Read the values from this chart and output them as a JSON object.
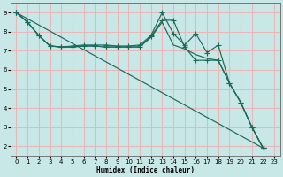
{
  "xlabel": "Humidex (Indice chaleur)",
  "bg_color": "#c8e8e8",
  "grid_color": "#e8b8b8",
  "line_color": "#1a6b5a",
  "xlim": [
    -0.5,
    23.5
  ],
  "ylim": [
    1.5,
    9.5
  ],
  "xticks": [
    0,
    1,
    2,
    3,
    4,
    5,
    6,
    7,
    8,
    9,
    10,
    11,
    12,
    13,
    14,
    15,
    16,
    17,
    18,
    19,
    20,
    21,
    22,
    23
  ],
  "yticks": [
    2,
    3,
    4,
    5,
    6,
    7,
    8,
    9
  ],
  "line1_x": [
    0,
    1,
    2,
    3,
    4,
    5,
    6,
    7,
    8,
    9,
    10,
    11,
    12,
    13,
    14,
    15,
    16,
    17,
    18,
    19,
    20,
    21,
    22
  ],
  "line1_y": [
    9.0,
    8.5,
    7.8,
    7.25,
    7.2,
    7.25,
    7.3,
    7.3,
    7.3,
    7.25,
    7.25,
    7.3,
    7.8,
    9.0,
    7.9,
    7.3,
    7.9,
    6.9,
    7.3,
    5.3,
    4.3,
    3.0,
    1.9
  ],
  "line2_x": [
    0,
    1,
    2,
    3,
    4,
    5,
    6,
    7,
    8,
    9,
    10,
    11,
    12,
    13,
    14,
    15,
    16,
    17,
    18,
    19,
    20,
    21,
    22
  ],
  "line2_y": [
    9.0,
    8.5,
    7.8,
    7.25,
    7.2,
    7.2,
    7.25,
    7.25,
    7.2,
    7.2,
    7.2,
    7.2,
    7.75,
    8.6,
    8.6,
    7.2,
    6.5,
    6.5,
    6.5,
    5.3,
    4.3,
    3.0,
    1.9
  ],
  "line3_x": [
    0,
    1,
    2,
    3,
    4,
    5,
    6,
    7,
    8,
    9,
    10,
    11,
    12,
    13,
    14,
    15,
    16,
    17,
    18,
    19,
    20,
    21,
    22
  ],
  "line3_y": [
    9.0,
    8.5,
    7.8,
    7.25,
    7.2,
    7.2,
    7.25,
    7.25,
    7.2,
    7.2,
    7.2,
    7.2,
    7.7,
    8.5,
    7.3,
    7.1,
    6.8,
    6.6,
    6.5,
    5.3,
    4.3,
    3.0,
    1.9
  ],
  "line4_x": [
    0,
    22
  ],
  "line4_y": [
    9.0,
    1.9
  ]
}
